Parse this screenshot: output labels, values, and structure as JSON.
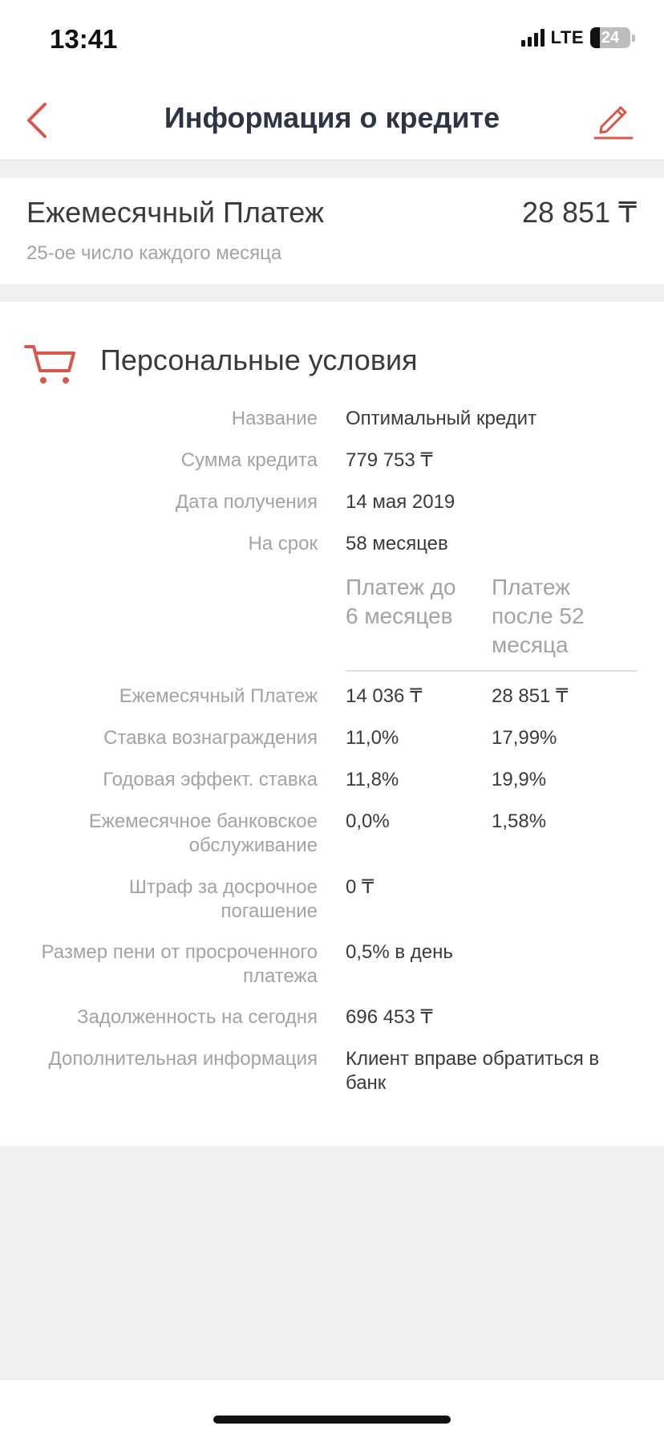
{
  "status_bar": {
    "time": "13:41",
    "network": "LTE",
    "battery": "24"
  },
  "nav": {
    "title": "Информация о кредите",
    "back_icon": "chevron-left-icon",
    "edit_icon": "pencil-icon"
  },
  "payment": {
    "label": "Ежемесячный Платеж",
    "amount": "28 851 ₸",
    "schedule": "25-ое число каждого месяца"
  },
  "conditions": {
    "title": "Персональные условия",
    "icon": "cart-icon",
    "details": [
      {
        "label": "Название",
        "value": "Оптимальный кредит"
      },
      {
        "label": "Сумма кредита",
        "value": "779 753 ₸"
      },
      {
        "label": "Дата получения",
        "value": "14 мая 2019"
      },
      {
        "label": "На срок",
        "value": "58 месяцев"
      }
    ],
    "columns": [
      "Платеж до 6 месяцев",
      "Платеж после 52 месяца"
    ],
    "rates": [
      {
        "label": "Ежемесячный Платеж",
        "v1": "14 036 ₸",
        "v2": "28 851 ₸"
      },
      {
        "label": "Ставка вознаграждения",
        "v1": "11,0%",
        "v2": "17,99%"
      },
      {
        "label": "Годовая эффект. ставка",
        "v1": "11,8%",
        "v2": "19,9%"
      },
      {
        "label": "Ежемесячное банковское обслуживание",
        "v1": "0,0%",
        "v2": "1,58%"
      }
    ],
    "extra": [
      {
        "label": "Штраф за досрочное погашение",
        "value": "0 ₸"
      },
      {
        "label": "Размер пени от просроченного платежа",
        "value": "0,5% в день"
      },
      {
        "label": "Задолженность на сегодня",
        "value": "696 453 ₸"
      },
      {
        "label": "Дополнительная информация",
        "value": "Клиент вправе обратиться в банк"
      }
    ]
  },
  "colors": {
    "accent": "#d9574a",
    "title": "#2d3545",
    "muted": "#a3a3a3",
    "background": "#f0f0f0"
  }
}
